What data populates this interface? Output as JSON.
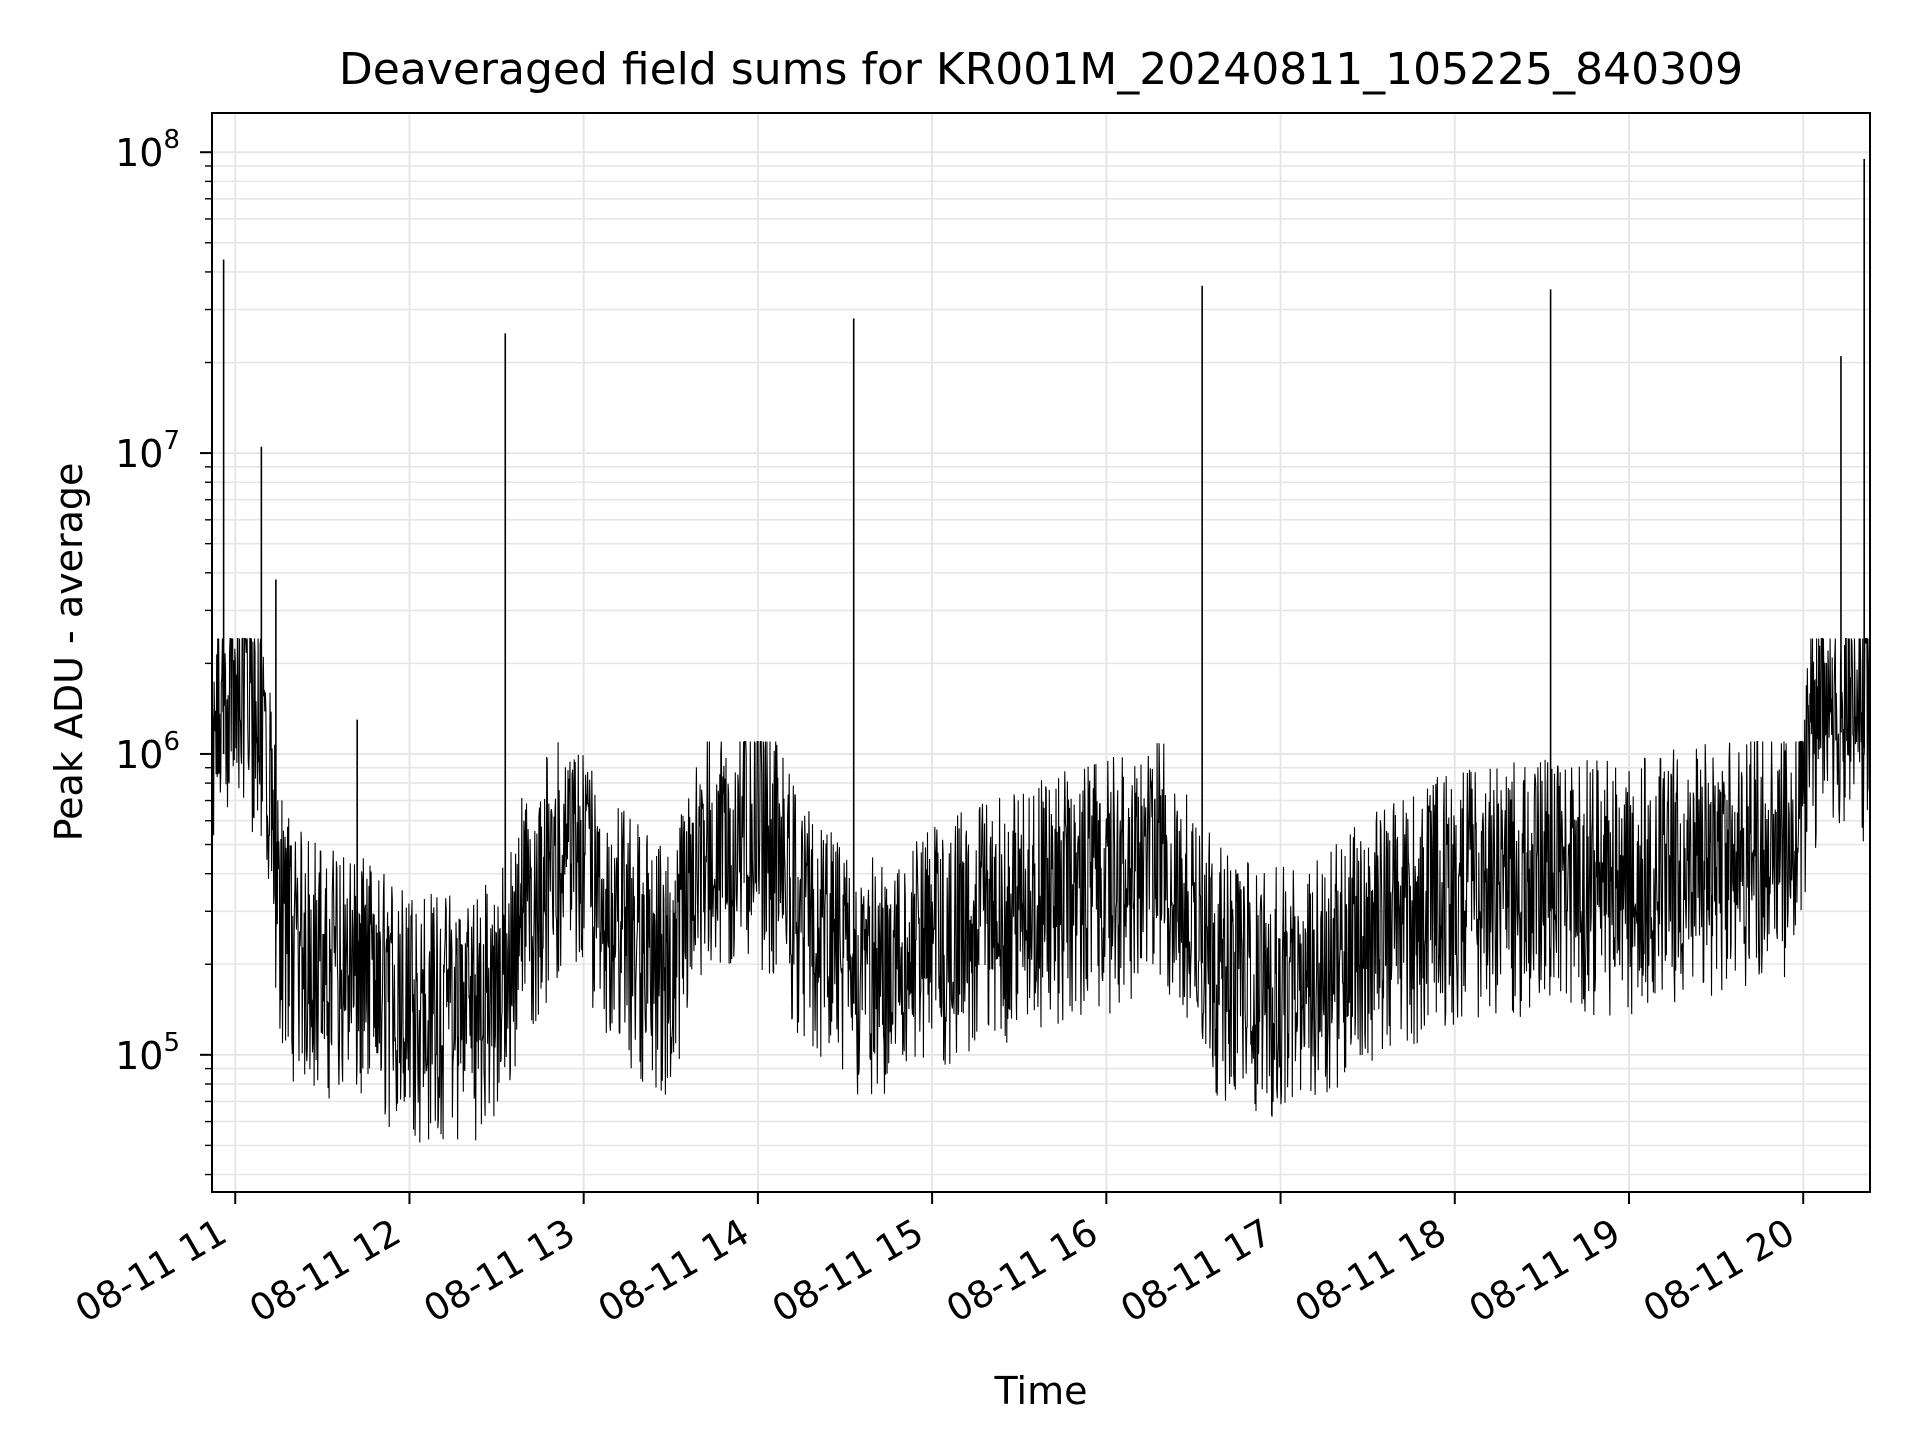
{
  "chart_data": {
    "type": "line",
    "title": "Deaveraged field sums for KR001M_20240811_105225_840309",
    "xlabel": "Time",
    "ylabel": "Peak ADU - average",
    "yscale": "log",
    "ylim": [
      35000,
      135000000
    ],
    "xlim": [
      "2024-08-11 10:52",
      "2024-08-11 20:23"
    ],
    "grid": true,
    "line_color": "#000000",
    "grid_color": "#e6e6e6",
    "x_ticks": [
      {
        "t": "2024-08-11 11:00",
        "label": "08-11 11"
      },
      {
        "t": "2024-08-11 12:00",
        "label": "08-11 12"
      },
      {
        "t": "2024-08-11 13:00",
        "label": "08-11 13"
      },
      {
        "t": "2024-08-11 14:00",
        "label": "08-11 14"
      },
      {
        "t": "2024-08-11 15:00",
        "label": "08-11 15"
      },
      {
        "t": "2024-08-11 16:00",
        "label": "08-11 16"
      },
      {
        "t": "2024-08-11 17:00",
        "label": "08-11 17"
      },
      {
        "t": "2024-08-11 18:00",
        "label": "08-11 18"
      },
      {
        "t": "2024-08-11 19:00",
        "label": "08-11 19"
      },
      {
        "t": "2024-08-11 20:00",
        "label": "08-11 20"
      }
    ],
    "y_ticks": [
      {
        "value": 100000,
        "base": "10",
        "exp": "5"
      },
      {
        "value": 1000000,
        "base": "10",
        "exp": "6"
      },
      {
        "value": 10000000,
        "base": "10",
        "exp": "7"
      },
      {
        "value": 100000000,
        "base": "10",
        "exp": "8"
      }
    ],
    "series": [
      {
        "points": [
          [
            "2024-08-11 10:52",
            400000
          ],
          [
            "2024-08-11 10:54",
            1300000
          ],
          [
            "2024-08-11 10:56",
            1000000
          ],
          [
            "2024-08-11 10:58",
            1400000
          ],
          [
            "2024-08-11 11:00",
            1100000
          ],
          [
            "2024-08-11 11:03",
            1600000
          ],
          [
            "2024-08-11 11:06",
            1200000
          ],
          [
            "2024-08-11 11:09",
            1000000
          ],
          [
            "2024-08-11 11:12",
            500000
          ],
          [
            "2024-08-11 11:15",
            250000
          ],
          [
            "2024-08-11 11:20",
            180000
          ],
          [
            "2024-08-11 11:30",
            160000
          ],
          [
            "2024-08-11 11:40",
            150000
          ],
          [
            "2024-08-11 11:50",
            130000
          ],
          [
            "2024-08-11 12:00",
            110000
          ],
          [
            "2024-08-11 12:15",
            110000
          ],
          [
            "2024-08-11 12:30",
            120000
          ],
          [
            "2024-08-11 12:40",
            250000
          ],
          [
            "2024-08-11 12:50",
            350000
          ],
          [
            "2024-08-11 13:00",
            350000
          ],
          [
            "2024-08-11 13:15",
            200000
          ],
          [
            "2024-08-11 13:30",
            150000
          ],
          [
            "2024-08-11 13:40",
            350000
          ],
          [
            "2024-08-11 14:00",
            450000
          ],
          [
            "2024-08-11 14:20",
            200000
          ],
          [
            "2024-08-11 14:30",
            150000
          ],
          [
            "2024-08-11 14:45",
            140000
          ],
          [
            "2024-08-11 15:00",
            180000
          ],
          [
            "2024-08-11 15:30",
            250000
          ],
          [
            "2024-08-11 16:00",
            300000
          ],
          [
            "2024-08-11 16:20",
            350000
          ],
          [
            "2024-08-11 16:40",
            150000
          ],
          [
            "2024-08-11 17:00",
            130000
          ],
          [
            "2024-08-11 17:30",
            200000
          ],
          [
            "2024-08-11 18:00",
            280000
          ],
          [
            "2024-08-11 18:30",
            300000
          ],
          [
            "2024-08-11 19:00",
            300000
          ],
          [
            "2024-08-11 19:30",
            350000
          ],
          [
            "2024-08-11 19:55",
            400000
          ],
          [
            "2024-08-11 20:05",
            1100000
          ],
          [
            "2024-08-11 20:15",
            1200000
          ],
          [
            "2024-08-11 20:23",
            1000000
          ]
        ]
      }
    ],
    "spikes": [
      [
        "2024-08-11 10:56",
        44000000
      ],
      [
        "2024-08-11 11:09",
        10500000
      ],
      [
        "2024-08-11 11:14",
        3800000
      ],
      [
        "2024-08-11 11:42",
        1300000
      ],
      [
        "2024-08-11 12:33",
        25000000
      ],
      [
        "2024-08-11 14:33",
        28000000
      ],
      [
        "2024-08-11 16:33",
        36000000
      ],
      [
        "2024-08-11 18:33",
        35000000
      ],
      [
        "2024-08-11 20:13",
        21000000
      ],
      [
        "2024-08-11 20:21",
        95000000
      ]
    ]
  }
}
